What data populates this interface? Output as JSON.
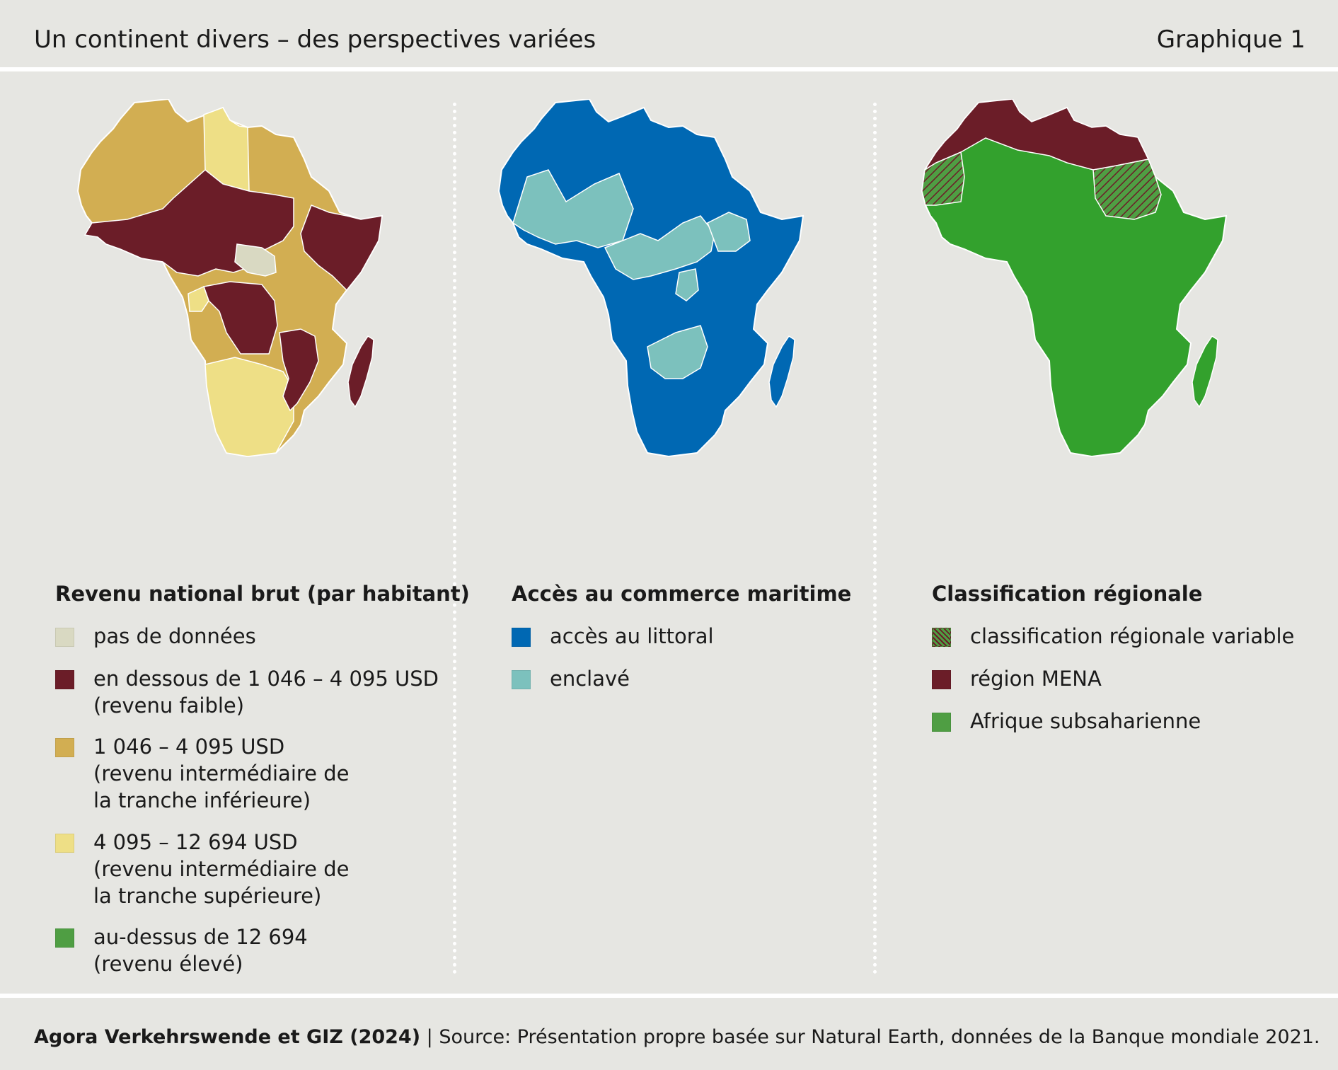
{
  "header": {
    "title": "Un continent divers – des perspectives variées",
    "figure_label": "Graphique 1"
  },
  "panels": [
    {
      "legend_title": "Revenu national brut (par habitant)",
      "items": [
        {
          "lines": [
            "pas de données"
          ],
          "color": "#d9d9c2"
        },
        {
          "lines": [
            "en dessous de 1 046 – 4 095 USD",
            "(revenu faible)"
          ],
          "color": "#6b1d28"
        },
        {
          "lines": [
            "1 046 – 4 095 USD",
            "(revenu intermédiaire de",
            "la tranche inférieure)"
          ],
          "color": "#d2ae52"
        },
        {
          "lines": [
            "4 095 – 12 694 USD",
            "(revenu intermédiaire de",
            "la tranche supérieure)"
          ],
          "color": "#eedf86"
        },
        {
          "lines": [
            "au-dessus de 12 694",
            "(revenu élevé)"
          ],
          "color": "#4f9e43"
        }
      ]
    },
    {
      "legend_title": "Accès au commerce maritime",
      "items": [
        {
          "lines": [
            "accès au littoral"
          ],
          "color": "#0068b3"
        },
        {
          "lines": [
            "enclavé"
          ],
          "color": "#7cc1bd"
        }
      ]
    },
    {
      "legend_title": "Classification régionale",
      "items": [
        {
          "lines": [
            "classification régionale variable"
          ],
          "color": "#4f9e43",
          "pattern": "hatch"
        },
        {
          "lines": [
            "région MENA"
          ],
          "color": "#6b1d28"
        },
        {
          "lines": [
            "Afrique subsaharienne"
          ],
          "color": "#4f9e43"
        }
      ]
    }
  ],
  "footer": {
    "org": "Agora Verkehrswende et GIZ (2024)",
    "source": " | Source: Présentation propre basée sur Natural Earth, données de la Banque mondiale 2021."
  }
}
